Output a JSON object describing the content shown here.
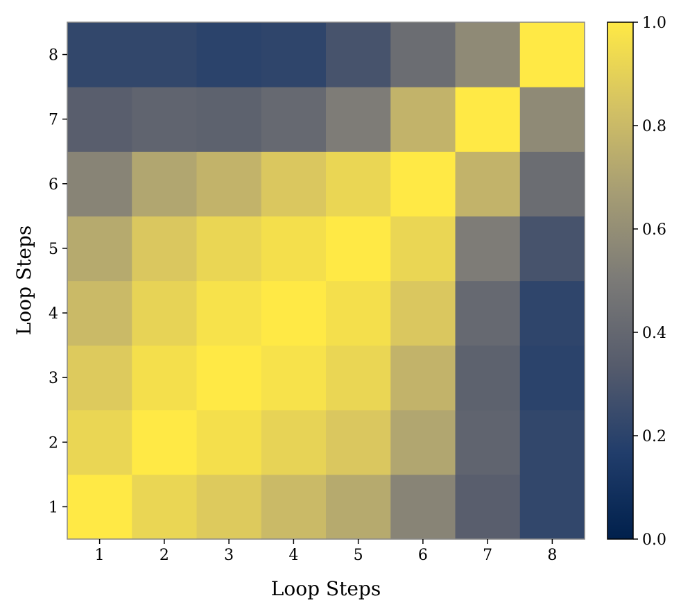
{
  "chart_data": {
    "type": "heatmap",
    "title": "",
    "xlabel": "Loop Steps",
    "ylabel": "Loop Steps",
    "x": [
      1,
      2,
      3,
      4,
      5,
      6,
      7,
      8
    ],
    "y": [
      1,
      2,
      3,
      4,
      5,
      6,
      7,
      8
    ],
    "x_tick_labels": [
      "1",
      "2",
      "3",
      "4",
      "5",
      "6",
      "7",
      "8"
    ],
    "y_tick_labels": [
      "1",
      "2",
      "3",
      "4",
      "5",
      "6",
      "7",
      "8"
    ],
    "values": [
      [
        1.0,
        0.92,
        0.87,
        0.8,
        0.73,
        0.55,
        0.35,
        0.22
      ],
      [
        0.92,
        1.0,
        0.96,
        0.91,
        0.86,
        0.71,
        0.38,
        0.22
      ],
      [
        0.87,
        0.96,
        1.0,
        0.97,
        0.92,
        0.77,
        0.37,
        0.2
      ],
      [
        0.8,
        0.91,
        0.97,
        1.0,
        0.96,
        0.86,
        0.41,
        0.21
      ],
      [
        0.73,
        0.86,
        0.92,
        0.96,
        1.0,
        0.92,
        0.51,
        0.29
      ],
      [
        0.55,
        0.71,
        0.77,
        0.86,
        0.92,
        1.0,
        0.77,
        0.43
      ],
      [
        0.35,
        0.38,
        0.37,
        0.41,
        0.51,
        0.77,
        1.0,
        0.58
      ],
      [
        0.22,
        0.22,
        0.2,
        0.21,
        0.29,
        0.43,
        0.58,
        1.0
      ]
    ],
    "values_orientation": "values[i][j] is the cell at y = y[i], x = x[j]",
    "colorscale": "cividis",
    "color_range": [
      0.0,
      1.0
    ],
    "colorbar_ticks": [
      0.0,
      0.2,
      0.4,
      0.6,
      0.8,
      1.0
    ],
    "colorbar_tick_labels": [
      "0.0",
      "0.2",
      "0.4",
      "0.6",
      "0.8",
      "1.0"
    ],
    "colorbar_position": "right",
    "y_axis_direction": "increasing upward",
    "grid": false,
    "colorscale_stops": [
      "#00204c",
      "#213d6b",
      "#555b6c",
      "#7b7a77",
      "#a59c74",
      "#d3c164",
      "#ffe945"
    ]
  }
}
